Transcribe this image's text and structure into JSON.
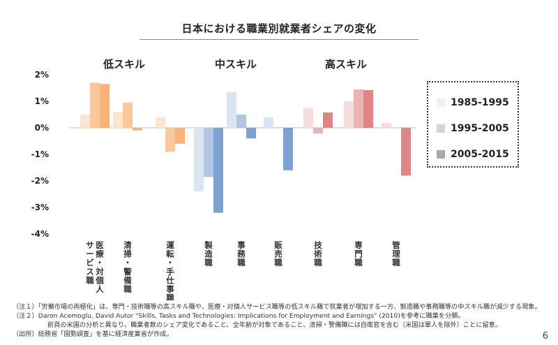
{
  "page": {
    "page_number": "6",
    "notes": [
      "（注１）「労働市場の両極化」は、専門・技術職等の高スキル職や、医療・対個人サービス職等の低スキル職で就業者が増加する一方、製造職や事務職等の中スキル職が減少する現象。",
      "（注２）Daron Acemoglu, David Autor \"Skills, Tasks and Technologies: Implications for Employment and Earnings\" (2010)を参考に職業を分類。",
      "前頁の米国の分析と異なり、職業者数のシェア変化であること、全年齢が対象であること、清掃・警備職には自衛官を含む（米国は軍人を除外）ことに留意。",
      "（出所）総務省「国勢調査」を基に経済産業省が作成。"
    ]
  },
  "chart_data": {
    "type": "bar",
    "title": "日本における職業別就業者シェアの変化",
    "ylim": [
      -4,
      2
    ],
    "yticks": [
      2,
      1,
      0,
      -1,
      -2,
      -3,
      -4
    ],
    "ytick_labels": [
      "2%",
      "1%",
      "0%",
      "-1%",
      "-2%",
      "-3%",
      "-4%"
    ],
    "groups": [
      {
        "label": "低スキル",
        "categories": [
          0,
          1,
          2
        ]
      },
      {
        "label": "中スキル",
        "categories": [
          3,
          4,
          5
        ]
      },
      {
        "label": "高スキル",
        "categories": [
          6,
          7,
          8
        ]
      }
    ],
    "categories": [
      "医療・対個人サービス職",
      "清掃・警備職",
      "運転・手仕事職",
      "製造職",
      "事務職",
      "販売職",
      "技術職",
      "専門職",
      "管理職"
    ],
    "category_label_columns": [
      [
        "医療・対個人",
        "サービス職"
      ],
      [
        "清掃・警備職"
      ],
      [
        "運転・手仕事職"
      ],
      [
        "製造職"
      ],
      [
        "事務職"
      ],
      [
        "販売職"
      ],
      [
        "技術職"
      ],
      [
        "専門職"
      ],
      [
        "管理職"
      ]
    ],
    "series": [
      {
        "name": "1985-1995",
        "values": [
          0.5,
          0.6,
          0.4,
          -2.4,
          1.35,
          0.4,
          0.75,
          1.0,
          0.18
        ]
      },
      {
        "name": "1995-2005",
        "values": [
          1.7,
          0.95,
          -0.9,
          -1.85,
          0.5,
          0.02,
          -0.22,
          1.45,
          0.0
        ]
      },
      {
        "name": "2005-2015",
        "values": [
          1.65,
          -0.1,
          -0.6,
          -3.2,
          -0.4,
          -1.6,
          0.58,
          1.42,
          -1.8
        ]
      }
    ],
    "colors": {
      "low": [
        "#fde5cf",
        "#fbc79c",
        "#f8b27a"
      ],
      "mid": [
        "#dbe5f1",
        "#b2c6e2",
        "#7da2d2"
      ],
      "high": [
        "#f5dcdc",
        "#edb3b3",
        "#de8585"
      ],
      "legend": [
        "#efefef",
        "#d4d4d4",
        "#a9a9a9"
      ]
    }
  }
}
